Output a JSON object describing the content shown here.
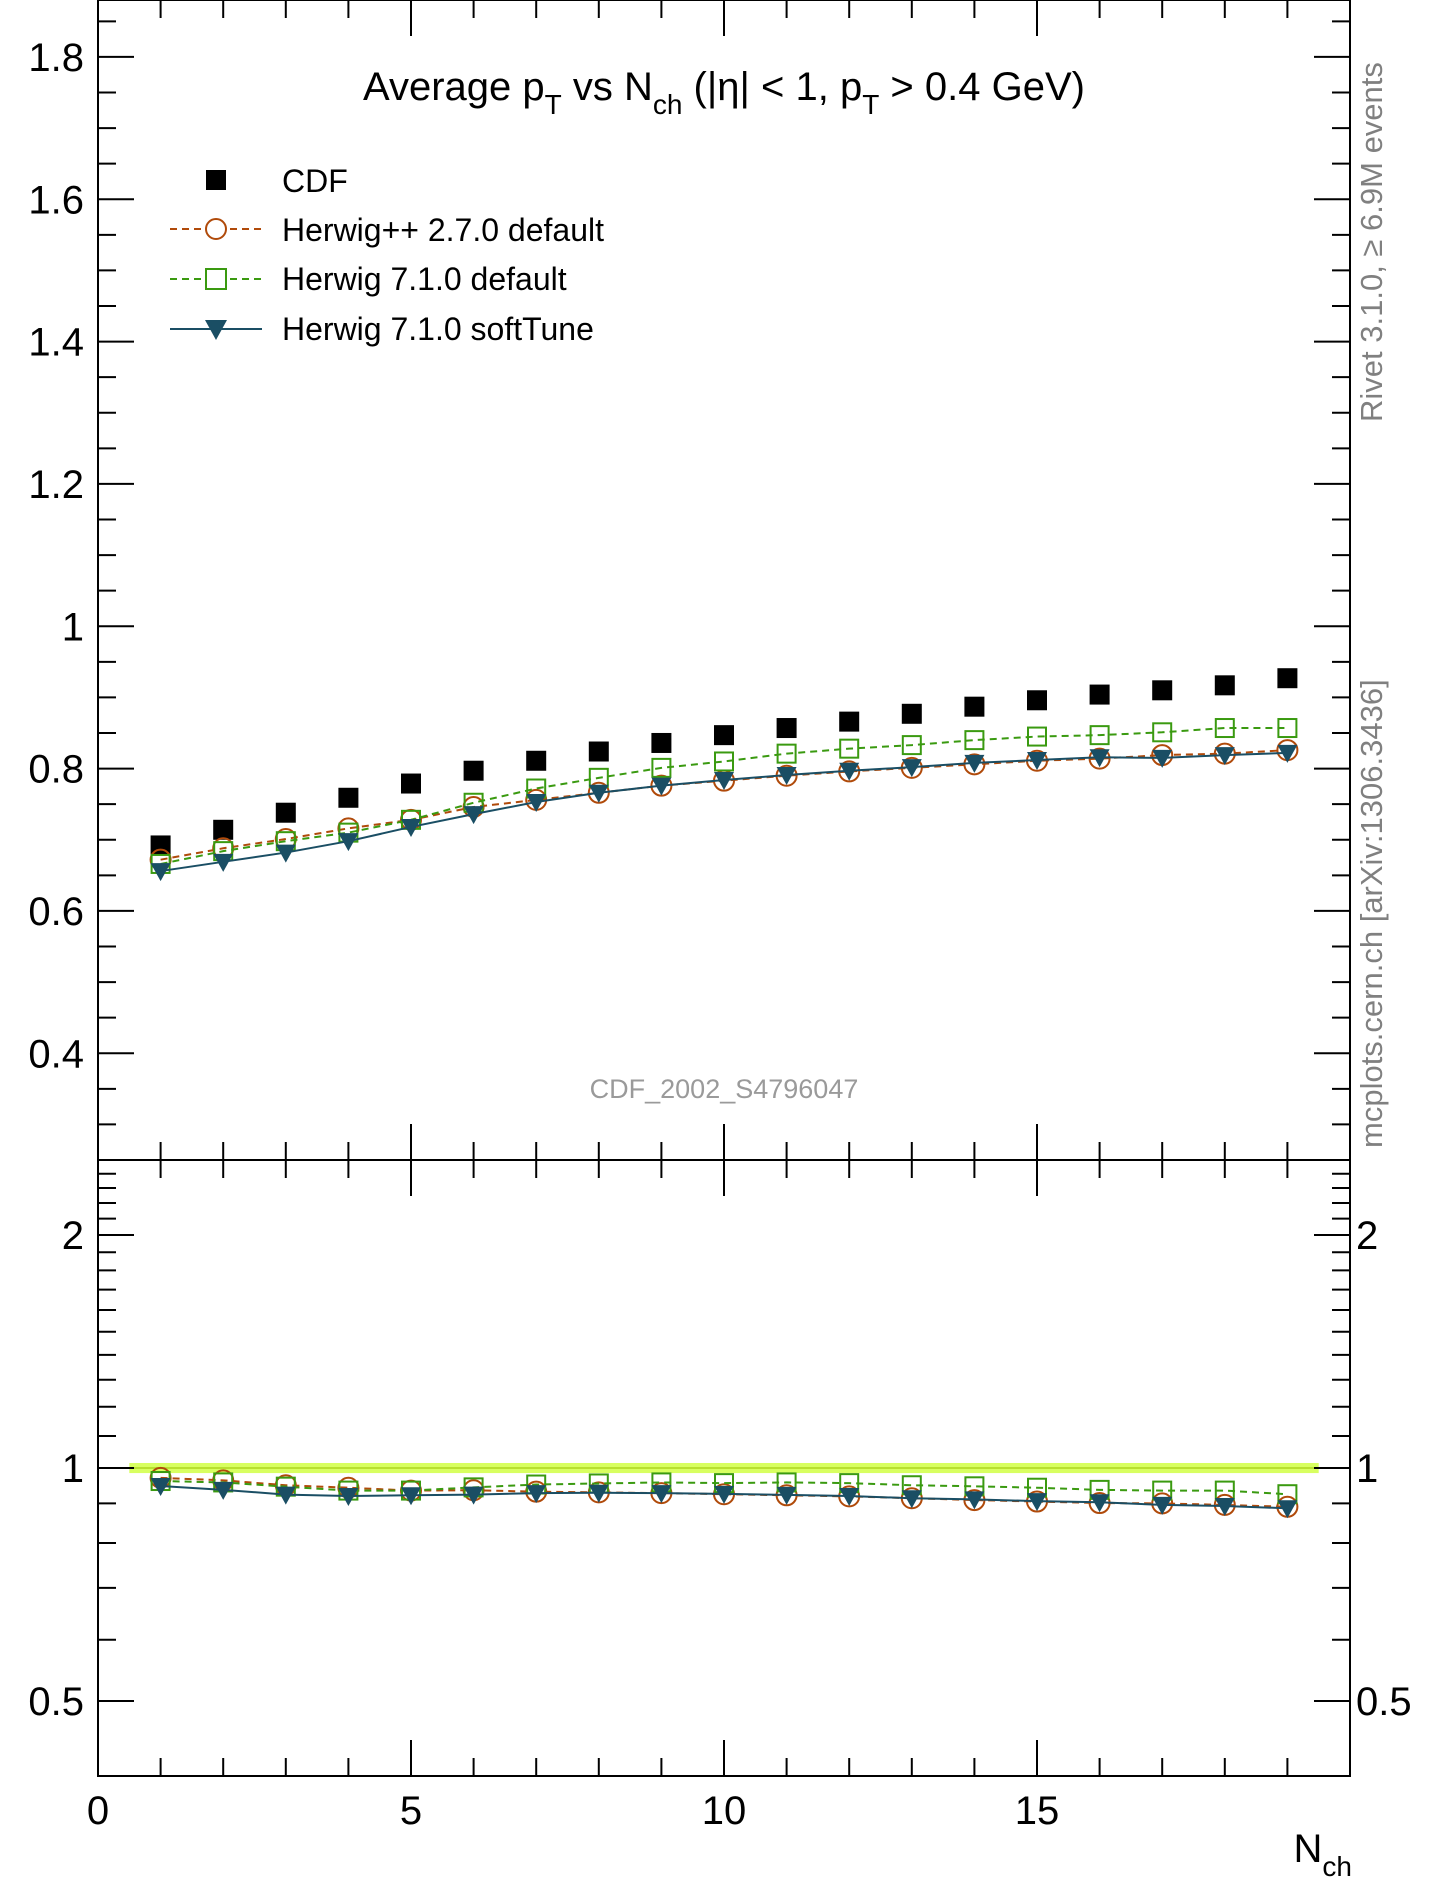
{
  "chart_data": [
    {
      "panel": "main",
      "type": "scatter",
      "title": {
        "main1": "Average p",
        "sub1": "T",
        "main2": " vs N",
        "sub2": "ch",
        "main3": " (|η| < 1, p",
        "sub3": "T",
        "main4": " > 0.4 GeV)"
      },
      "x": [
        1,
        2,
        3,
        4,
        5,
        6,
        7,
        8,
        9,
        10,
        11,
        12,
        13,
        14,
        15,
        16,
        17,
        18,
        19
      ],
      "series": [
        {
          "name": "CDF",
          "marker": "filled-square",
          "color": "#000000",
          "values": [
            0.692,
            0.714,
            0.738,
            0.759,
            0.779,
            0.797,
            0.811,
            0.824,
            0.836,
            0.847,
            0.857,
            0.866,
            0.877,
            0.887,
            0.896,
            0.904,
            0.91,
            0.917,
            0.927
          ]
        },
        {
          "name": "Herwig++ 2.7.0 default",
          "marker": "open-circle",
          "line": "dashed",
          "color": "#b04a0a",
          "values": [
            0.672,
            0.688,
            0.701,
            0.716,
            0.728,
            0.746,
            0.756,
            0.766,
            0.776,
            0.783,
            0.79,
            0.796,
            0.801,
            0.806,
            0.811,
            0.814,
            0.819,
            0.821,
            0.826
          ]
        },
        {
          "name": "Herwig 7.1.0 default",
          "marker": "open-square",
          "line": "dashed",
          "color": "#3a9a10",
          "values": [
            0.666,
            0.684,
            0.698,
            0.71,
            0.728,
            0.752,
            0.772,
            0.787,
            0.801,
            0.81,
            0.821,
            0.828,
            0.833,
            0.84,
            0.845,
            0.847,
            0.851,
            0.857,
            0.857
          ]
        },
        {
          "name": "Herwig 7.1.0 softTune",
          "marker": "filled-triangle-down",
          "line": "solid",
          "color": "#1a4e64",
          "values": [
            0.656,
            0.669,
            0.682,
            0.698,
            0.718,
            0.736,
            0.753,
            0.766,
            0.776,
            0.784,
            0.791,
            0.797,
            0.802,
            0.808,
            0.812,
            0.816,
            0.815,
            0.819,
            0.822
          ]
        }
      ],
      "ylim": [
        0.25,
        1.88
      ],
      "y_ticks": [
        "0.4",
        "0.6",
        "0.8",
        "1",
        "1.2",
        "1.4",
        "1.6",
        "1.8"
      ],
      "legend_position": "top-left",
      "analysis_label": "CDF_2002_S4796047"
    },
    {
      "panel": "ratio",
      "type": "scatter",
      "x": [
        1,
        2,
        3,
        4,
        5,
        6,
        7,
        8,
        9,
        10,
        11,
        12,
        13,
        14,
        15,
        16,
        17,
        18,
        19
      ],
      "series": [
        {
          "name": "Herwig++ 2.7.0 default",
          "values": [
            0.971,
            0.964,
            0.95,
            0.943,
            0.935,
            0.936,
            0.932,
            0.93,
            0.928,
            0.925,
            0.922,
            0.919,
            0.914,
            0.909,
            0.905,
            0.901,
            0.9,
            0.896,
            0.891
          ]
        },
        {
          "name": "Herwig 7.1.0 default",
          "values": [
            0.962,
            0.958,
            0.946,
            0.935,
            0.935,
            0.944,
            0.952,
            0.955,
            0.958,
            0.956,
            0.958,
            0.956,
            0.95,
            0.947,
            0.943,
            0.937,
            0.935,
            0.935,
            0.925
          ]
        },
        {
          "name": "Herwig 7.1.0 softTune",
          "values": [
            0.948,
            0.937,
            0.924,
            0.92,
            0.922,
            0.924,
            0.928,
            0.929,
            0.928,
            0.926,
            0.923,
            0.92,
            0.914,
            0.911,
            0.906,
            0.903,
            0.896,
            0.893,
            0.887
          ]
        }
      ],
      "yscale": "log",
      "ylim": [
        0.4,
        2.5
      ],
      "y_ticks": [
        "0.5",
        "1",
        "2"
      ],
      "reference_band": {
        "low": 0.985,
        "high": 1.015,
        "color": "#d8ff60"
      }
    }
  ],
  "x_axis": {
    "label_main": "N",
    "label_sub": "ch",
    "xlim": [
      0,
      20
    ],
    "ticks": [
      "0",
      "5",
      "10",
      "15"
    ]
  },
  "side_labels": {
    "top": "Rivet 3.1.0, ≥ 6.9M events",
    "bottom": "mcplots.cern.ch [arXiv:1306.3436]"
  }
}
